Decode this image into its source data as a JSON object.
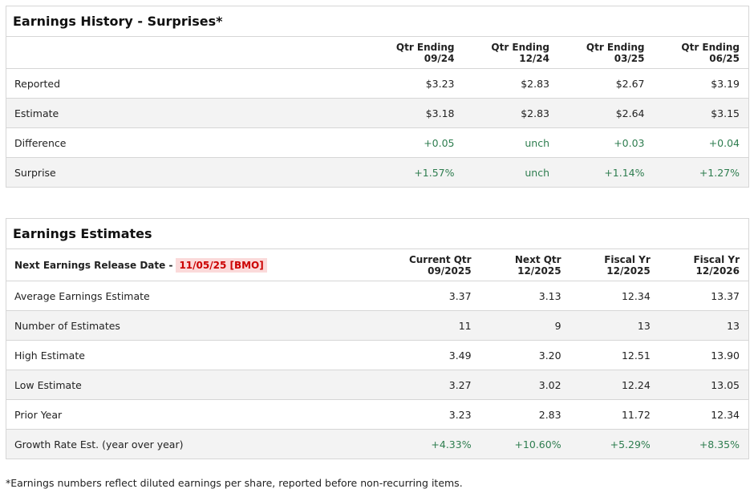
{
  "history": {
    "title": "Earnings History - Surprises*",
    "columns": [
      {
        "l1": "Qtr Ending",
        "l2": "09/24"
      },
      {
        "l1": "Qtr Ending",
        "l2": "12/24"
      },
      {
        "l1": "Qtr Ending",
        "l2": "03/25"
      },
      {
        "l1": "Qtr Ending",
        "l2": "06/25"
      }
    ],
    "rows": [
      {
        "label": "Reported",
        "values": [
          "$3.23",
          "$2.83",
          "$2.67",
          "$3.19"
        ]
      },
      {
        "label": "Estimate",
        "values": [
          "$3.18",
          "$2.83",
          "$2.64",
          "$3.15"
        ]
      },
      {
        "label": "Difference",
        "values": [
          "+0.05",
          "unch",
          "+0.03",
          "+0.04"
        ]
      },
      {
        "label": "Surprise",
        "values": [
          "+1.57%",
          "unch",
          "+1.14%",
          "+1.27%"
        ]
      }
    ]
  },
  "estimates": {
    "title": "Earnings Estimates",
    "release_label": "Next Earnings Release Date -",
    "release_date": "11/05/25 [BMO]",
    "columns": [
      {
        "l1": "Current Qtr",
        "l2": "09/2025"
      },
      {
        "l1": "Next Qtr",
        "l2": "12/2025"
      },
      {
        "l1": "Fiscal Yr",
        "l2": "12/2025"
      },
      {
        "l1": "Fiscal Yr",
        "l2": "12/2026"
      }
    ],
    "rows": [
      {
        "label": "Average Earnings Estimate",
        "values": [
          "3.37",
          "3.13",
          "12.34",
          "13.37"
        ]
      },
      {
        "label": "Number of Estimates",
        "values": [
          "11",
          "9",
          "13",
          "13"
        ]
      },
      {
        "label": "High Estimate",
        "values": [
          "3.49",
          "3.20",
          "12.51",
          "13.90"
        ]
      },
      {
        "label": "Low Estimate",
        "values": [
          "3.27",
          "3.02",
          "12.24",
          "13.05"
        ]
      },
      {
        "label": "Prior Year",
        "values": [
          "3.23",
          "2.83",
          "11.72",
          "12.34"
        ]
      },
      {
        "label": "Growth Rate Est. (year over year)",
        "values": [
          "+4.33%",
          "+10.60%",
          "+5.29%",
          "+8.35%"
        ]
      }
    ]
  },
  "footnote": "*Earnings numbers reflect diluted earnings per share, reported before non-recurring items.",
  "colors": {
    "positive": "#2e7d4f",
    "badge_text": "#cc0000",
    "badge_bg": "#fbdada"
  }
}
